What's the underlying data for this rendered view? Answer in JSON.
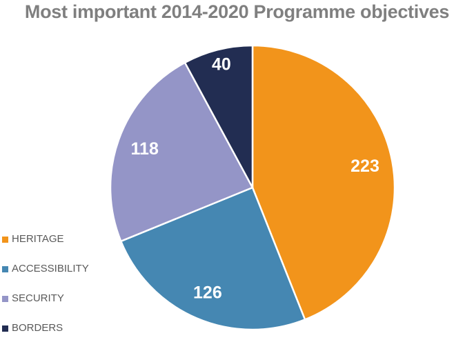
{
  "chart_data": {
    "type": "pie",
    "title": "Most important 2014-2020 Programme objectives",
    "categories": [
      "HERITAGE",
      "ACCESSIBILITY",
      "SECURITY",
      "BORDERS"
    ],
    "values": [
      223,
      126,
      118,
      40
    ],
    "colors": [
      "#f2941b",
      "#4587b2",
      "#9495c7",
      "#222d52"
    ],
    "data_label_color": "#ffffff",
    "start_angle_deg": 0,
    "direction": "clockwise",
    "legend_position": "bottom-left"
  }
}
